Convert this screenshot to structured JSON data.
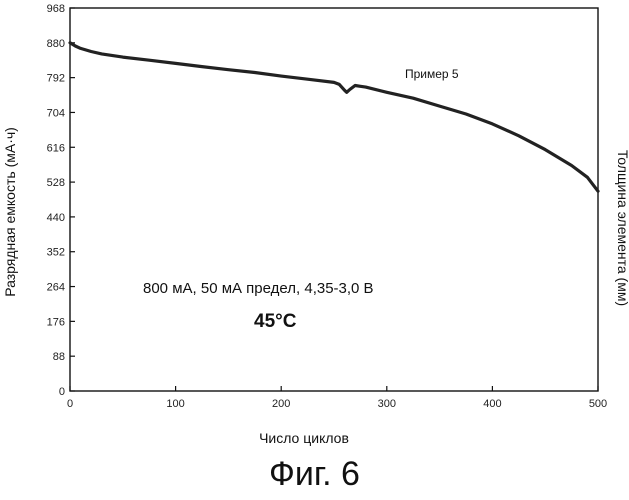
{
  "chart_data": {
    "type": "line",
    "xlabel": "Число циклов",
    "ylabel": "Разрядная емкость (мА·ч)",
    "ylabel_right": "Толщина элемента (мм)",
    "xlim": [
      0,
      500
    ],
    "ylim": [
      0,
      968
    ],
    "x_ticks": [
      0,
      100,
      200,
      300,
      400,
      500
    ],
    "y_ticks": [
      0,
      88,
      176,
      264,
      352,
      440,
      528,
      616,
      704,
      792,
      880,
      968
    ],
    "x_tick_labels": [
      "0",
      "100",
      "200",
      "300",
      "400",
      "500"
    ],
    "y_tick_labels": [
      "0",
      "88",
      "176",
      "264",
      "352",
      "440",
      "528",
      "616",
      "704",
      "792",
      "880",
      "968"
    ],
    "grid": false,
    "series": [
      {
        "name": "Пример 5",
        "x": [
          0,
          5,
          10,
          20,
          30,
          50,
          75,
          100,
          125,
          150,
          175,
          200,
          225,
          250,
          255,
          260,
          262,
          265,
          270,
          275,
          280,
          300,
          325,
          350,
          375,
          400,
          425,
          450,
          475,
          490,
          500
        ],
        "y": [
          880,
          872,
          866,
          858,
          852,
          844,
          836,
          828,
          820,
          812,
          805,
          796,
          788,
          780,
          775,
          760,
          755,
          762,
          772,
          770,
          768,
          755,
          740,
          720,
          700,
          675,
          645,
          610,
          570,
          540,
          505
        ]
      }
    ],
    "annotations": {
      "series_label": "Пример 5",
      "conditions": "800 мА, 50 мА предел, 4,35-3,0 В",
      "temperature": "45°C"
    }
  },
  "caption": "Фиг. 6"
}
